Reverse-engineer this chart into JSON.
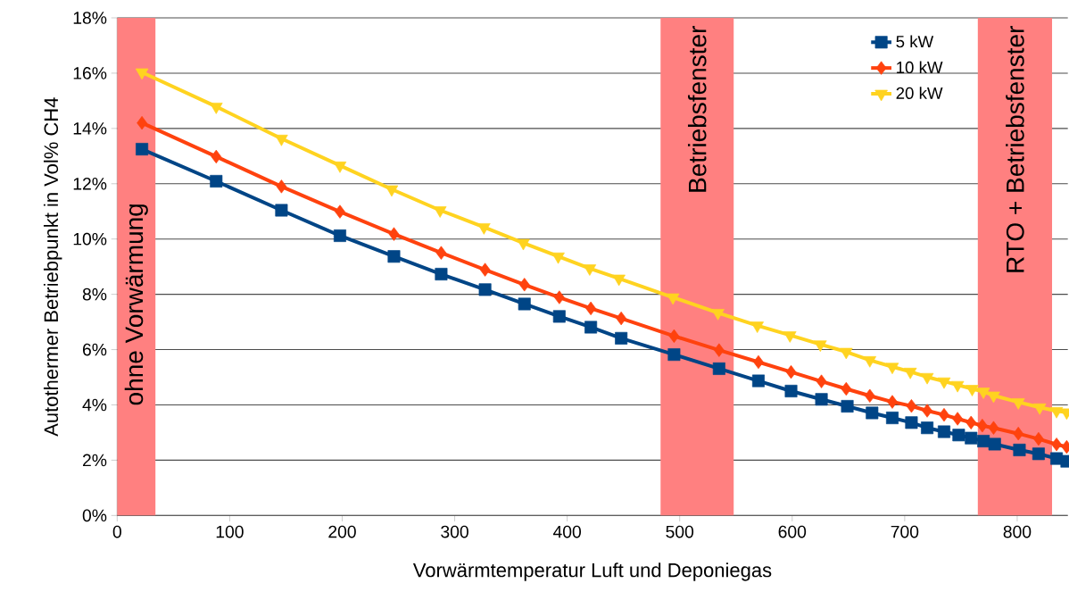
{
  "chart_data": {
    "type": "line",
    "xlabel": "Vorwärmtemperatur Luft und Deponiegas",
    "ylabel": "Autothermer Betriebpunkt in Vol% CH4",
    "xlim": [
      0,
      845
    ],
    "ylim": [
      0,
      18
    ],
    "xticks": [
      0,
      100,
      200,
      300,
      400,
      500,
      600,
      700,
      800
    ],
    "yticks": [
      {
        "value": 0,
        "label": "0%"
      },
      {
        "value": 2,
        "label": "2%"
      },
      {
        "value": 4,
        "label": "4%"
      },
      {
        "value": 6,
        "label": "6%"
      },
      {
        "value": 8,
        "label": "8%"
      },
      {
        "value": 10,
        "label": "10%"
      },
      {
        "value": 12,
        "label": "12%"
      },
      {
        "value": 14,
        "label": "14%"
      },
      {
        "value": 16,
        "label": "16%"
      },
      {
        "value": 18,
        "label": "18%"
      }
    ],
    "grid": "y",
    "legend": "top right",
    "series": [
      {
        "name": "5 kW",
        "color": "#004586",
        "marker": "square",
        "x": [
          22,
          88,
          146,
          198,
          246,
          288,
          327,
          362,
          393,
          421,
          448,
          495,
          535,
          570,
          599,
          626,
          649,
          671,
          689,
          706,
          720,
          735,
          748,
          759,
          770,
          780,
          802,
          819,
          835,
          844
        ],
        "values": [
          13.25,
          12.09,
          11.04,
          10.12,
          9.37,
          8.73,
          8.17,
          7.65,
          7.2,
          6.81,
          6.41,
          5.82,
          5.31,
          4.87,
          4.5,
          4.2,
          3.95,
          3.71,
          3.53,
          3.36,
          3.17,
          3.03,
          2.91,
          2.8,
          2.69,
          2.58,
          2.37,
          2.23,
          2.06,
          1.96
        ]
      },
      {
        "name": "10 kW",
        "color": "#ff420e",
        "marker": "diamond",
        "x": [
          22,
          88,
          146,
          198,
          246,
          288,
          327,
          362,
          393,
          421,
          448,
          495,
          535,
          570,
          599,
          626,
          648,
          669,
          689,
          706,
          720,
          735,
          747,
          759,
          769,
          779,
          801,
          819,
          835,
          844
        ],
        "values": [
          14.2,
          12.98,
          11.9,
          10.99,
          10.18,
          9.5,
          8.89,
          8.35,
          7.89,
          7.49,
          7.13,
          6.49,
          5.98,
          5.55,
          5.19,
          4.85,
          4.58,
          4.33,
          4.11,
          3.96,
          3.79,
          3.64,
          3.5,
          3.36,
          3.25,
          3.17,
          2.96,
          2.77,
          2.57,
          2.48
        ]
      },
      {
        "name": "20 kW",
        "color": "#ffd320",
        "marker": "triangle",
        "x": [
          22,
          88,
          146,
          198,
          244,
          287,
          326,
          361,
          392,
          420,
          446,
          494,
          534,
          569,
          598,
          625,
          648,
          669,
          689,
          705,
          720,
          735,
          747,
          760,
          770,
          779,
          801,
          820,
          835,
          844
        ],
        "values": [
          16.03,
          14.79,
          13.63,
          12.66,
          11.8,
          11.04,
          10.43,
          9.86,
          9.37,
          8.94,
          8.57,
          7.89,
          7.33,
          6.87,
          6.52,
          6.19,
          5.92,
          5.62,
          5.38,
          5.2,
          5.01,
          4.85,
          4.72,
          4.58,
          4.48,
          4.34,
          4.1,
          3.91,
          3.78,
          3.73
        ]
      }
    ],
    "bands": [
      {
        "axis": "x",
        "from": 0,
        "to": 34,
        "label": "ohne Vorwärmung",
        "color": "#ff8080"
      },
      {
        "axis": "x",
        "from": 483,
        "to": 548,
        "label": "Betriebsfenster",
        "color": "#ff8080"
      },
      {
        "axis": "x",
        "from": 765,
        "to": 831,
        "label": "RTO + Betriebsfenster",
        "color": "#ff8080"
      }
    ]
  }
}
